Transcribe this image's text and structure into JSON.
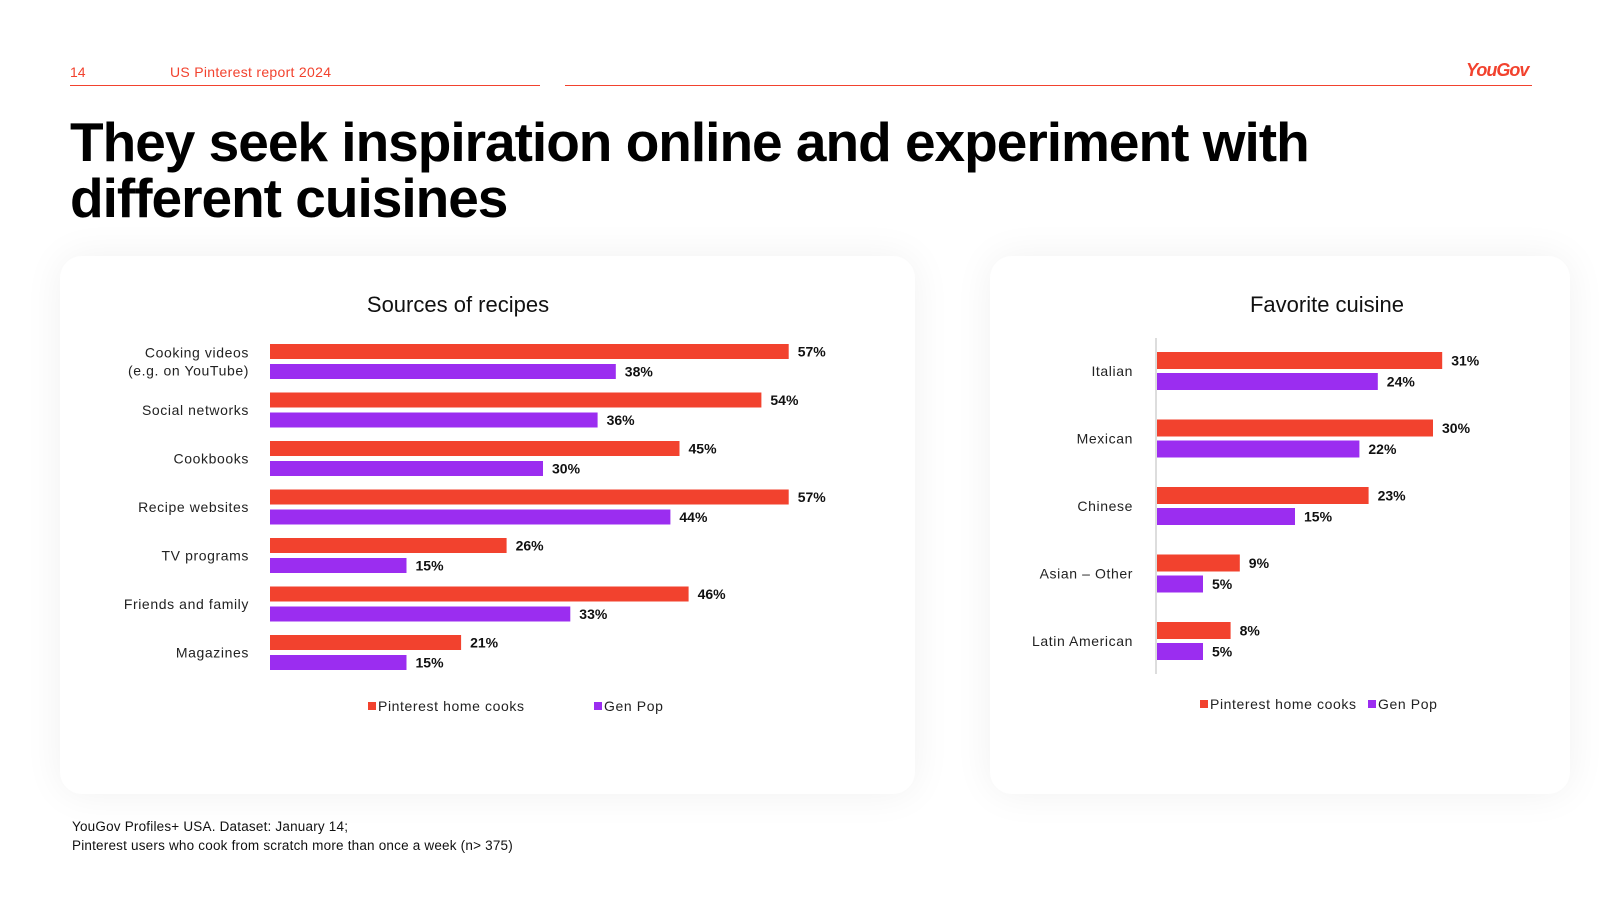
{
  "header": {
    "page_number": "14",
    "report_name": "US Pinterest report 2024",
    "brand": "YouGov"
  },
  "title": "They seek inspiration online and experiment with different cuisines",
  "colors": {
    "accent": "#f2422e",
    "pinterest": "#f2422e",
    "genpop": "#9b2df0"
  },
  "footnote": {
    "line1": "YouGov Profiles+ USA. Dataset: January 14;",
    "line2": "Pinterest users who cook from scratch more than once a week (n> 375)"
  },
  "chart_data": [
    {
      "type": "bar",
      "orientation": "horizontal",
      "title": "Sources of recipes",
      "categories": [
        [
          "Cooking videos",
          "(e.g. on YouTube)"
        ],
        [
          "Social networks"
        ],
        [
          "Cookbooks"
        ],
        [
          "Recipe websites"
        ],
        [
          "TV programs"
        ],
        [
          "Friends and family"
        ],
        [
          "Magazines"
        ]
      ],
      "series": [
        {
          "name": "Pinterest home cooks",
          "values": [
            57,
            54,
            45,
            57,
            26,
            46,
            21
          ]
        },
        {
          "name": "Gen Pop",
          "values": [
            38,
            36,
            30,
            44,
            15,
            33,
            15
          ]
        }
      ],
      "unit": "%",
      "legend_position": "bottom"
    },
    {
      "type": "bar",
      "orientation": "horizontal",
      "title": "Favorite cuisine",
      "categories": [
        [
          "Italian"
        ],
        [
          "Mexican"
        ],
        [
          "Chinese"
        ],
        [
          "Asian – Other"
        ],
        [
          "Latin American"
        ]
      ],
      "series": [
        {
          "name": "Pinterest home cooks",
          "values": [
            31,
            30,
            23,
            9,
            8
          ]
        },
        {
          "name": "Gen Pop",
          "values": [
            24,
            22,
            15,
            5,
            5
          ]
        }
      ],
      "unit": "%",
      "legend_position": "bottom"
    }
  ]
}
